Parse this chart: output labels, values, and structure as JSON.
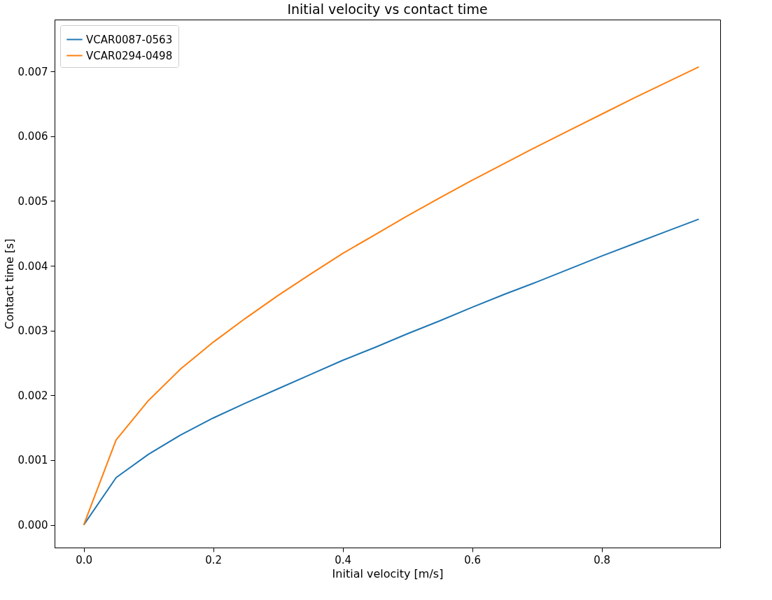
{
  "chart_data": {
    "type": "line",
    "title": "Initial velocity vs contact time",
    "xlabel": "Initial velocity [m/s]",
    "ylabel": "Contact time [s]",
    "x": [
      0,
      0.05,
      0.1,
      0.15,
      0.2,
      0.25,
      0.3,
      0.35,
      0.4,
      0.45,
      0.5,
      0.55,
      0.6,
      0.65,
      0.7,
      0.75,
      0.8,
      0.85,
      0.9,
      0.95
    ],
    "series": [
      {
        "name": "VCAR0087-0563",
        "color": "#1f77b4",
        "values": [
          0,
          0.00073,
          0.00109,
          0.00139,
          0.00165,
          0.00188,
          0.0021,
          0.00232,
          0.00254,
          0.00274,
          0.00295,
          0.00315,
          0.00336,
          0.00356,
          0.00375,
          0.00395,
          0.00415,
          0.00434,
          0.00453,
          0.00472
        ]
      },
      {
        "name": "VCAR0294-0498",
        "color": "#ff7f0e",
        "values": [
          0,
          0.00131,
          0.00192,
          0.00241,
          0.00282,
          0.00319,
          0.00354,
          0.00387,
          0.00419,
          0.00448,
          0.00477,
          0.00505,
          0.00532,
          0.00558,
          0.00584,
          0.00609,
          0.00634,
          0.00659,
          0.00683,
          0.00707
        ]
      }
    ],
    "xlim": [
      -0.045,
      0.983
    ],
    "ylim": [
      -0.00035,
      0.0078
    ],
    "xticks": [
      {
        "value": 0,
        "label": "0.0"
      },
      0.2,
      0.4,
      0.6,
      0.8
    ],
    "yticks": [
      {
        "value": 0,
        "label": "0.000"
      },
      0.001,
      0.002,
      0.003,
      0.004,
      0.005,
      0.006,
      0.007
    ],
    "grid": false,
    "legend": "top left",
    "marker": "none",
    "line_style": "solid"
  }
}
